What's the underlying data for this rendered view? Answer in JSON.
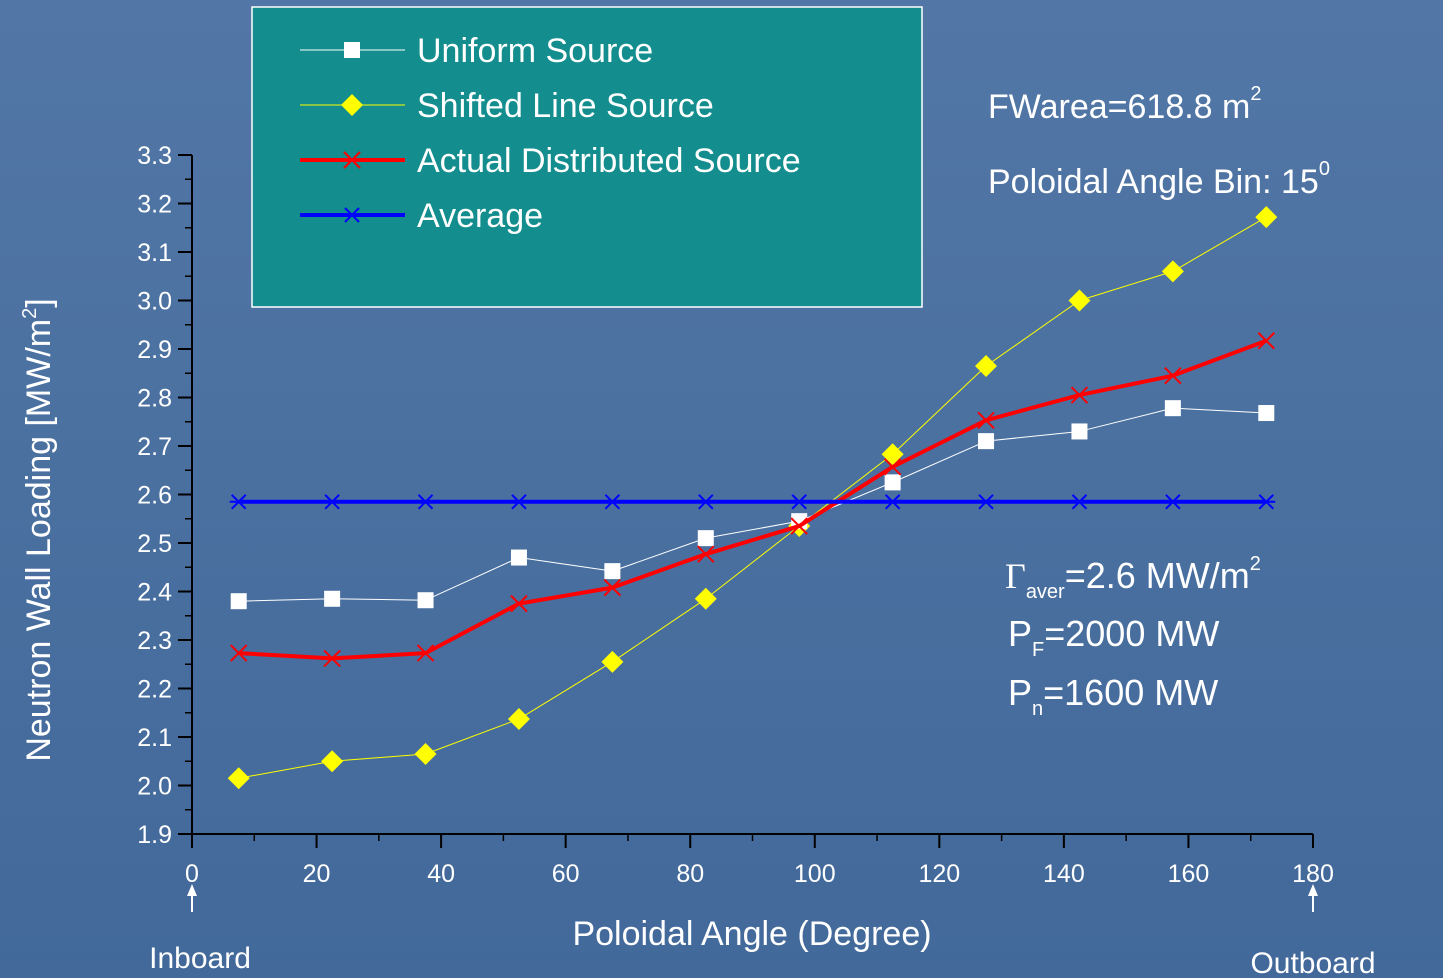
{
  "chart_data": {
    "type": "line",
    "xlabel": "Poloidal Angle (Degree)",
    "ylabel_main": "Neutron Wall Loading [MW/m",
    "ylabel_sup": "2",
    "ylabel_end": "]",
    "xlim": [
      0,
      180
    ],
    "ylim": [
      1.9,
      3.3
    ],
    "xticks": [
      "0",
      "20",
      "40",
      "60",
      "80",
      "100",
      "120",
      "140",
      "160",
      "180"
    ],
    "yticks": [
      "1.9",
      "2.0",
      "2.1",
      "2.2",
      "2.3",
      "2.4",
      "2.5",
      "2.6",
      "2.7",
      "2.8",
      "2.9",
      "3.0",
      "3.1",
      "3.2",
      "3.3"
    ],
    "x": [
      7.5,
      22.5,
      37.5,
      52.5,
      67.5,
      82.5,
      97.5,
      112.5,
      127.5,
      142.5,
      157.5,
      172.5
    ],
    "series": [
      {
        "name": "Uniform Source",
        "color": "#ffffff",
        "marker": "square",
        "line_width": 1,
        "values": [
          2.38,
          2.385,
          2.382,
          2.47,
          2.442,
          2.51,
          2.545,
          2.625,
          2.71,
          2.73,
          2.778,
          2.768
        ]
      },
      {
        "name": "Shifted Line Source",
        "color": "#ffff00",
        "marker": "diamond",
        "line_width": 1,
        "values": [
          2.015,
          2.05,
          2.065,
          2.137,
          2.255,
          2.385,
          2.535,
          2.683,
          2.865,
          3.0,
          3.06,
          3.172
        ]
      },
      {
        "name": "Actual Distributed Source",
        "color": "#ff0000",
        "marker": "x",
        "line_width": 4,
        "values": [
          2.273,
          2.262,
          2.273,
          2.375,
          2.408,
          2.477,
          2.535,
          2.657,
          2.753,
          2.805,
          2.845,
          2.917
        ]
      },
      {
        "name": "Average",
        "color": "#0000ff",
        "marker": "asterisk",
        "line_width": 4,
        "values": [
          2.585,
          2.585,
          2.585,
          2.585,
          2.585,
          2.585,
          2.585,
          2.585,
          2.585,
          2.585,
          2.585,
          2.585
        ]
      }
    ],
    "legend_position": "top-left",
    "legend_bg": "#138d8d",
    "annotations": {
      "fwarea": "FWarea=618.8 m",
      "fwarea_sup": "2",
      "bin": "Poloidal Angle Bin: 15",
      "bin_sup": "0",
      "gamma_sym": "Γ",
      "gamma_sub": "aver",
      "gamma_text": "=2.6 MW/m",
      "gamma_sup": "2",
      "pf_p": "P",
      "pf_sub": "F",
      "pf_text": "=2000 MW",
      "pn_p": "P",
      "pn_sub": "n",
      "pn_text": "=1600 MW",
      "inboard": "Inboard",
      "outboard": "Outboard"
    }
  }
}
